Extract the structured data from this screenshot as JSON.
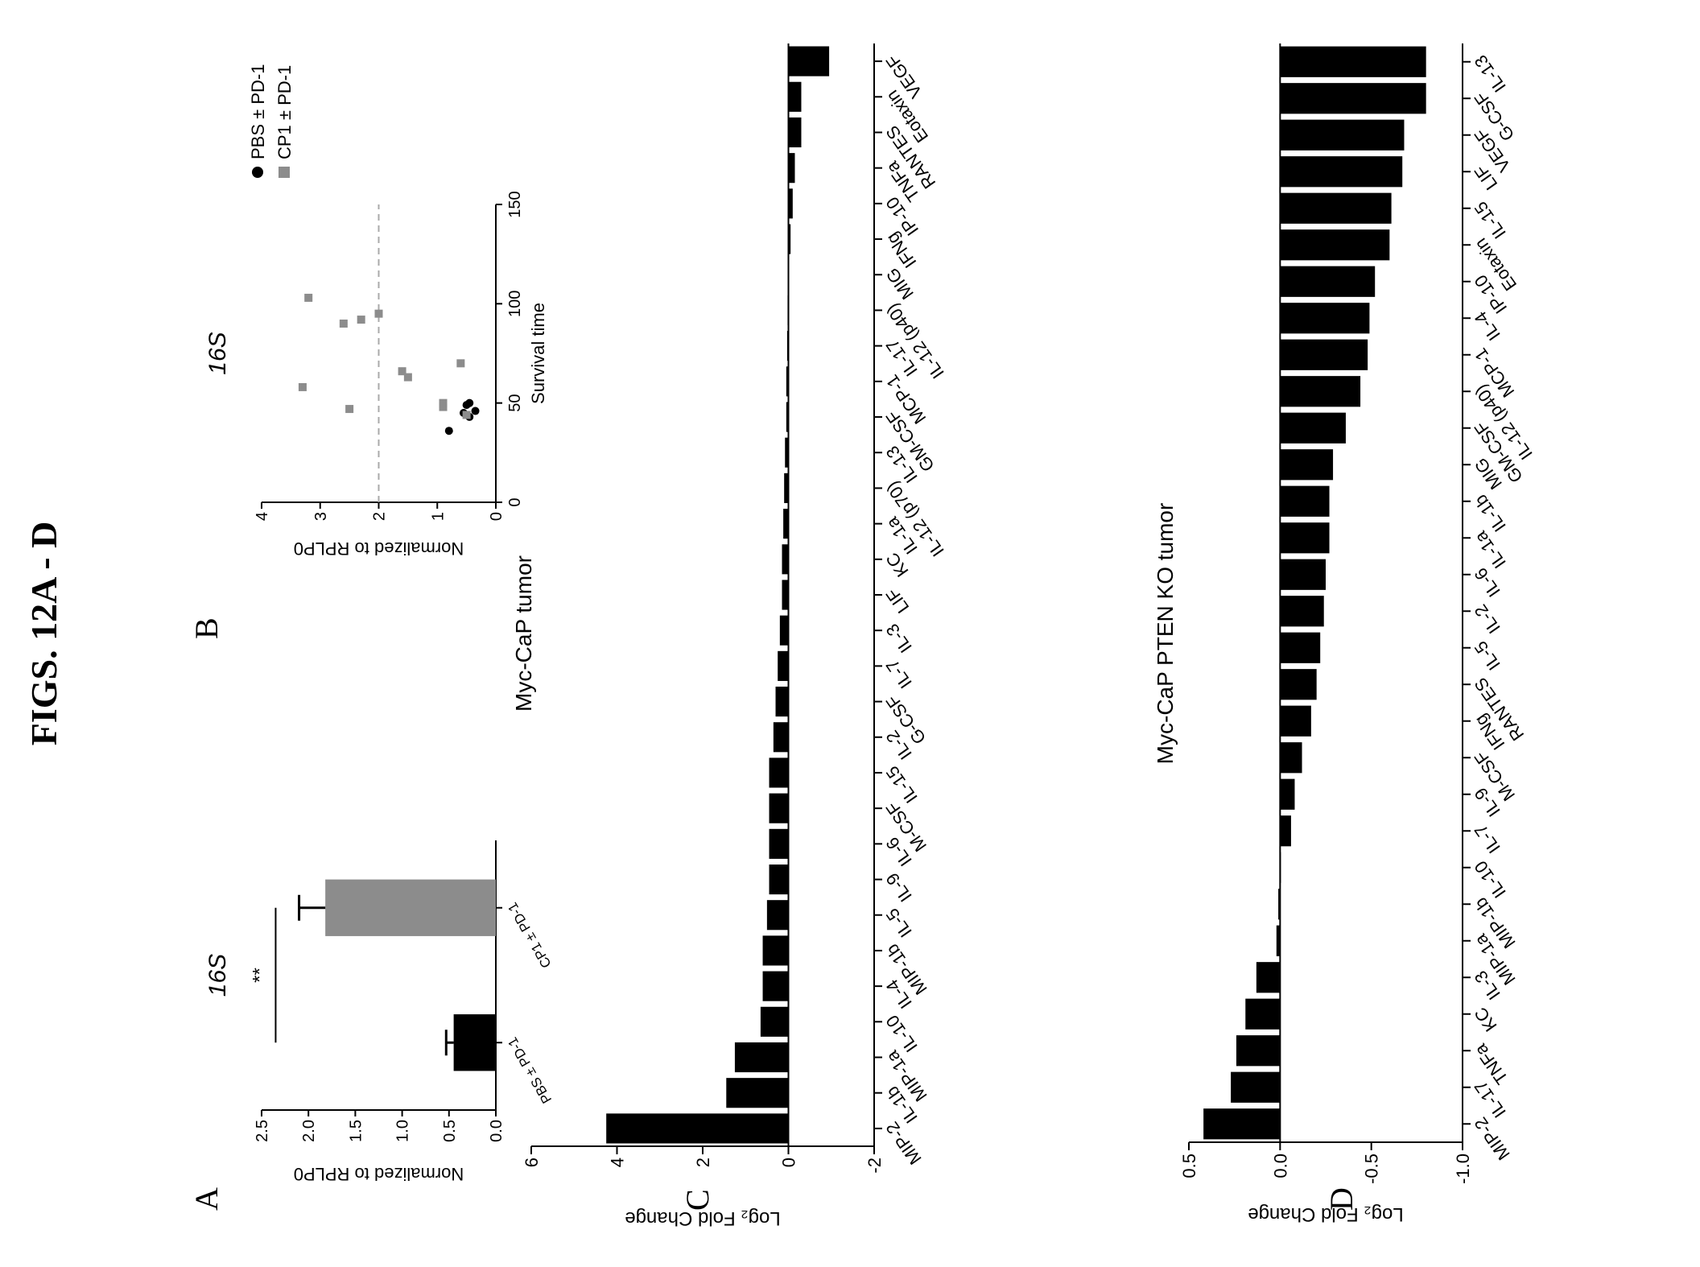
{
  "figure_title": "FIGS. 12A - D",
  "colors": {
    "black": "#000000",
    "gray": "#8c8c8c",
    "dash": "#aaaaaa"
  },
  "chart_data": [
    {
      "panel": "A",
      "type": "bar",
      "title": "16S",
      "ylabel": "Normalized to RPLP0",
      "xlabel": "",
      "ylim": [
        0,
        2.5
      ],
      "yticks": [
        "0.0",
        "0.5",
        "1.0",
        "1.5",
        "2.0",
        "2.5"
      ],
      "categories": [
        "PBS ± PD-1",
        "CP1 ± PD-1"
      ],
      "values": [
        0.45,
        1.82
      ],
      "errors": [
        0.08,
        0.28
      ],
      "bar_colors": [
        "#000000",
        "#8c8c8c"
      ],
      "significance": "**"
    },
    {
      "panel": "B",
      "type": "scatter",
      "title": "16S",
      "ylabel": "Normalized to RPLP0",
      "xlabel": "Survival time",
      "xlim": [
        0,
        150
      ],
      "ylim": [
        0,
        4
      ],
      "xticks": [
        "0",
        "50",
        "100",
        "150"
      ],
      "yticks": [
        "0",
        "1",
        "2",
        "3",
        "4"
      ],
      "reference_line": 2,
      "legend_position": "top-right",
      "series": [
        {
          "name": "PBS ± PD-1",
          "marker": "circle",
          "x": [
            36,
            43,
            45,
            46,
            49,
            50
          ],
          "y": [
            0.8,
            0.45,
            0.55,
            0.35,
            0.5,
            0.45
          ]
        },
        {
          "name": "CP1 ± PD-1",
          "marker": "square",
          "x": [
            44,
            47,
            48,
            50,
            58,
            63,
            66,
            70,
            90,
            92,
            95,
            103
          ],
          "y": [
            0.5,
            2.5,
            0.9,
            0.9,
            3.3,
            1.5,
            1.6,
            0.6,
            2.6,
            2.3,
            2.0,
            3.2
          ]
        }
      ]
    },
    {
      "panel": "C",
      "type": "bar",
      "title": "Myc-CaP tumor",
      "ylabel": "Log₂ Fold Change",
      "xlabel": "",
      "ylim": [
        -2,
        6
      ],
      "yticks": [
        "-2",
        "0",
        "2",
        "4",
        "6"
      ],
      "categories": [
        "MIP-2",
        "IL-1b",
        "MIP-1a",
        "IL-10",
        "IL-4",
        "MIP-1b",
        "IL-5",
        "IL-9",
        "IL-6",
        "M-CSF",
        "IL-15",
        "IL-2",
        "G-CSF",
        "IL-7",
        "IL-3",
        "LIF",
        "KC",
        "IL-1a",
        "IL-12 (p70)",
        "IL-13",
        "GM-CSF",
        "MCP-1",
        "IL-17",
        "IL-12 (p40)",
        "MIG",
        "IFNg",
        "IP-10",
        "TNFa",
        "RANTES",
        "Eotaxin",
        "VEGF"
      ],
      "values": [
        4.25,
        1.45,
        1.25,
        0.65,
        0.6,
        0.6,
        0.5,
        0.45,
        0.45,
        0.45,
        0.45,
        0.35,
        0.3,
        0.25,
        0.2,
        0.15,
        0.15,
        0.12,
        0.1,
        0.08,
        0.05,
        0.05,
        0.03,
        0.02,
        0.0,
        -0.05,
        -0.1,
        -0.15,
        -0.3,
        -0.3,
        -0.95
      ],
      "bar_color": "#000000"
    },
    {
      "panel": "D",
      "type": "bar",
      "title": "Myc-CaP PTEN KO tumor",
      "ylabel": "Log₂ Fold Change",
      "xlabel": "",
      "ylim": [
        -1.0,
        0.5
      ],
      "yticks": [
        "0.5",
        "0.0",
        "-0.5",
        "-1.0"
      ],
      "categories": [
        "MIP-2",
        "IL-17",
        "TNFa",
        "KC",
        "IL-3",
        "MIP-1a",
        "MIP-1b",
        "IL-10",
        "IL-7",
        "IL-9",
        "M-CSF",
        "IFNg",
        "RANTES",
        "IL-5",
        "IL-2",
        "IL-6",
        "IL-1a",
        "IL-1b",
        "MIG",
        "GM-CSF",
        "IL-12 (p40)",
        "MCP-1",
        "IL-4",
        "IP-10",
        "Eotaxin",
        "IL-15",
        "LIF",
        "VEGF",
        "G-CSF",
        "IL-13"
      ],
      "values": [
        0.42,
        0.27,
        0.24,
        0.19,
        0.13,
        0.02,
        0.01,
        0.0,
        -0.06,
        -0.08,
        -0.12,
        -0.17,
        -0.2,
        -0.22,
        -0.24,
        -0.25,
        -0.27,
        -0.27,
        -0.29,
        -0.36,
        -0.44,
        -0.48,
        -0.49,
        -0.52,
        -0.6,
        -0.61,
        -0.67,
        -0.68,
        -0.8,
        -0.8
      ],
      "bar_color": "#000000"
    }
  ]
}
